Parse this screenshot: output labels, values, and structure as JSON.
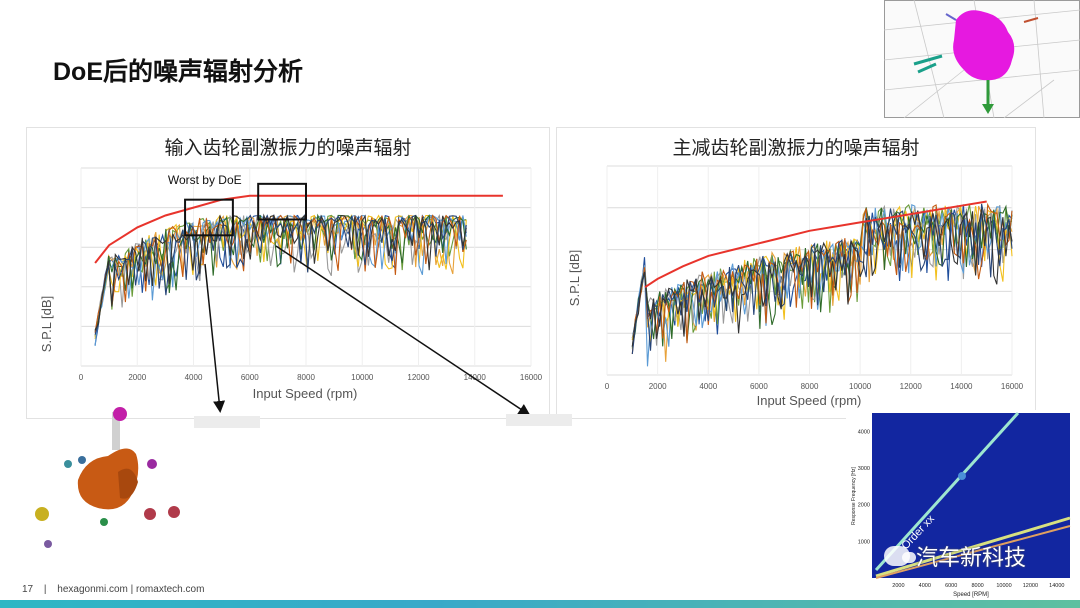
{
  "slide": {
    "title": "DoE后的噪声辐射分析",
    "page_number": "17",
    "separator": "|",
    "footer_text": "hexagonmi.com | romaxtech.com",
    "watermark": "汽车新科技"
  },
  "colors": {
    "envelope": "#e8342c",
    "series": [
      "#1f4e9c",
      "#e8a23a",
      "#6a9c3a",
      "#9a9a9a",
      "#f2c01e",
      "#5b9bd5",
      "#2f6b2a",
      "#c55a11",
      "#264478",
      "#333333"
    ],
    "accent_bar": "#2db7c4",
    "spectrogram_bg": "#1226a0"
  },
  "chart_data": [
    {
      "type": "line",
      "title": "输入齿轮副激振力的噪声辐射",
      "xlabel": "Input Speed (rpm)",
      "ylabel": "S.P.L [dB]",
      "xlim": [
        0,
        16000
      ],
      "xticks": [
        0,
        2000,
        4000,
        6000,
        8000,
        10000,
        12000,
        14000,
        16000
      ],
      "ylim": [
        0,
        100
      ],
      "grid": "horizontal",
      "envelope": {
        "x": [
          500,
          1000,
          2000,
          3000,
          4000,
          5000,
          6000,
          7000,
          8000,
          9000,
          10000,
          11000,
          12000,
          13000,
          14000,
          15000
        ],
        "y": [
          52,
          61,
          70,
          76,
          80,
          84,
          86,
          86,
          86,
          86,
          86,
          86,
          86,
          86,
          86,
          86
        ]
      },
      "annotations": [
        {
          "text": "Worst by DoE",
          "x": 4400,
          "y": 92
        }
      ],
      "highlight_boxes": [
        {
          "x0": 3700,
          "x1": 5400,
          "y0": 66,
          "y1": 84
        },
        {
          "x0": 6300,
          "x1": 8000,
          "y0": 74,
          "y1": 92
        }
      ]
    },
    {
      "type": "line",
      "title": "主减齿轮副激振力的噪声辐射",
      "xlabel": "Input Speed (rpm)",
      "ylabel": "S.P.L [dB]",
      "xlim": [
        0,
        16000
      ],
      "xticks": [
        0,
        2000,
        4000,
        6000,
        8000,
        10000,
        12000,
        14000,
        16000
      ],
      "ylim": [
        0,
        100
      ],
      "grid": "horizontal",
      "envelope": {
        "x": [
          1500,
          2000,
          3000,
          4000,
          5000,
          6000,
          7000,
          8000,
          9000,
          10000,
          11000,
          12000,
          13000,
          14000,
          15000
        ],
        "y": [
          42,
          46,
          52,
          57,
          60,
          63,
          66,
          69,
          71,
          73,
          75,
          77,
          79,
          81,
          83
        ]
      }
    },
    {
      "type": "heatmap",
      "xlabel": "Speed [RPM]",
      "ylabel": "Response Frequency [Hz]",
      "xticks": [
        2000,
        4000,
        6000,
        8000,
        10000,
        12000,
        14000
      ],
      "yticks": [
        1000,
        2000,
        3000,
        4000
      ],
      "annotations": [
        {
          "text": "Order xx"
        }
      ]
    }
  ]
}
